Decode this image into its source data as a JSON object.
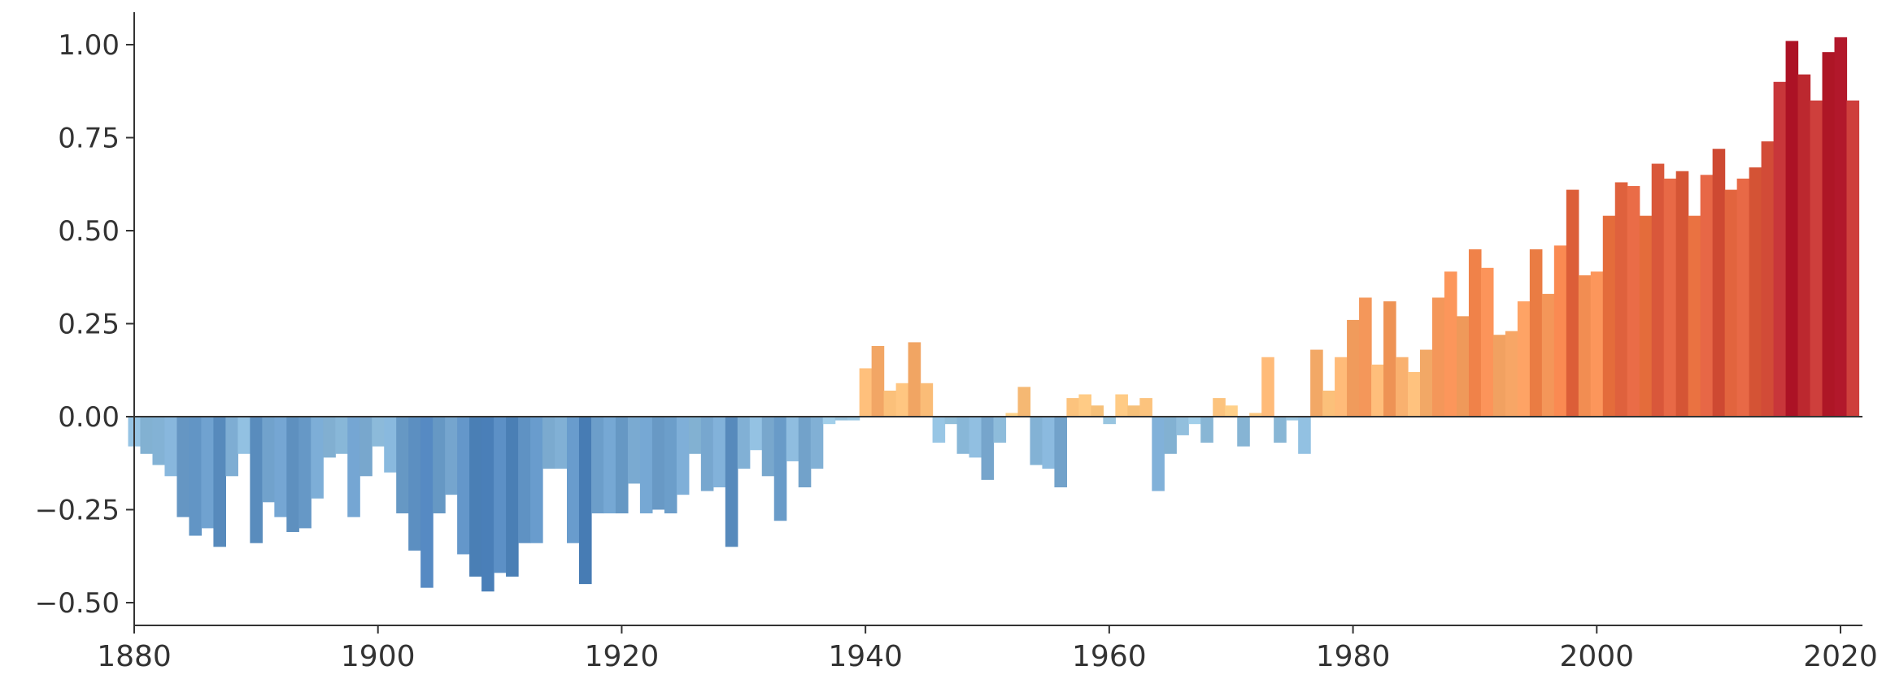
{
  "chart_data": {
    "type": "bar",
    "title": "",
    "xlabel": "",
    "ylabel": "",
    "xlim": [
      1880,
      2021
    ],
    "ylim": [
      -0.5,
      1.0
    ],
    "grid": false,
    "legend": "none",
    "x_ticks": [
      1880,
      1900,
      1920,
      1940,
      1960,
      1980,
      2000,
      2020
    ],
    "x_tick_labels": [
      "1880",
      "1900",
      "1920",
      "1940",
      "1960",
      "1980",
      "2000",
      "2020"
    ],
    "y_ticks": [
      -0.5,
      -0.25,
      0,
      0.25,
      0.5,
      0.75,
      1.0
    ],
    "y_tick_labels": [
      "−0.50",
      "−0.25",
      "0.00",
      "0.25",
      "0.50",
      "0.75",
      "1.00"
    ],
    "color_scale": [
      "#4a7fb8",
      "#9dc9e3",
      "#fdcb83",
      "#ef7a43",
      "#b2182b"
    ],
    "years": [
      1880,
      1881,
      1882,
      1883,
      1884,
      1885,
      1886,
      1887,
      1888,
      1889,
      1890,
      1891,
      1892,
      1893,
      1894,
      1895,
      1896,
      1897,
      1898,
      1899,
      1900,
      1901,
      1902,
      1903,
      1904,
      1905,
      1906,
      1907,
      1908,
      1909,
      1910,
      1911,
      1912,
      1913,
      1914,
      1915,
      1916,
      1917,
      1918,
      1919,
      1920,
      1921,
      1922,
      1923,
      1924,
      1925,
      1926,
      1927,
      1928,
      1929,
      1930,
      1931,
      1932,
      1933,
      1934,
      1935,
      1936,
      1937,
      1938,
      1939,
      1940,
      1941,
      1942,
      1943,
      1944,
      1945,
      1946,
      1947,
      1948,
      1949,
      1950,
      1951,
      1952,
      1953,
      1954,
      1955,
      1956,
      1957,
      1958,
      1959,
      1960,
      1961,
      1962,
      1963,
      1964,
      1965,
      1966,
      1967,
      1968,
      1969,
      1970,
      1971,
      1972,
      1973,
      1974,
      1975,
      1976,
      1977,
      1978,
      1979,
      1980,
      1981,
      1982,
      1983,
      1984,
      1985,
      1986,
      1987,
      1988,
      1989,
      1990,
      1991,
      1992,
      1993,
      1994,
      1995,
      1996,
      1997,
      1998,
      1999,
      2000,
      2001,
      2002,
      2003,
      2004,
      2005,
      2006,
      2007,
      2008,
      2009,
      2010,
      2011,
      2012,
      2013,
      2014,
      2015,
      2016,
      2017,
      2018,
      2019,
      2020,
      2021
    ],
    "values": [
      -0.08,
      -0.1,
      -0.13,
      -0.16,
      -0.27,
      -0.32,
      -0.3,
      -0.35,
      -0.16,
      -0.1,
      -0.34,
      -0.23,
      -0.27,
      -0.31,
      -0.3,
      -0.22,
      -0.11,
      -0.1,
      -0.27,
      -0.16,
      -0.08,
      -0.15,
      -0.26,
      -0.36,
      -0.46,
      -0.26,
      -0.21,
      -0.37,
      -0.43,
      -0.47,
      -0.42,
      -0.43,
      -0.34,
      -0.34,
      -0.14,
      -0.14,
      -0.34,
      -0.45,
      -0.26,
      -0.26,
      -0.26,
      -0.18,
      -0.26,
      -0.25,
      -0.26,
      -0.21,
      -0.1,
      -0.2,
      -0.19,
      -0.35,
      -0.14,
      -0.09,
      -0.16,
      -0.28,
      -0.12,
      -0.19,
      -0.14,
      -0.02,
      -0.01,
      -0.01,
      0.13,
      0.19,
      0.07,
      0.09,
      0.2,
      0.09,
      -0.07,
      -0.02,
      -0.1,
      -0.11,
      -0.17,
      -0.07,
      0.01,
      0.08,
      -0.13,
      -0.14,
      -0.19,
      0.05,
      0.06,
      0.03,
      -0.02,
      0.06,
      0.03,
      0.05,
      -0.2,
      -0.1,
      -0.05,
      -0.02,
      -0.07,
      0.05,
      0.03,
      -0.08,
      0.01,
      0.16,
      -0.07,
      -0.01,
      -0.1,
      0.18,
      0.07,
      0.16,
      0.26,
      0.32,
      0.14,
      0.31,
      0.16,
      0.12,
      0.18,
      0.32,
      0.39,
      0.27,
      0.45,
      0.4,
      0.22,
      0.23,
      0.31,
      0.45,
      0.33,
      0.46,
      0.61,
      0.38,
      0.39,
      0.54,
      0.63,
      0.62,
      0.54,
      0.68,
      0.64,
      0.66,
      0.54,
      0.65,
      0.72,
      0.61,
      0.64,
      0.67,
      0.74,
      0.9,
      1.01,
      0.92,
      0.85,
      0.98,
      1.02,
      0.85
    ]
  }
}
